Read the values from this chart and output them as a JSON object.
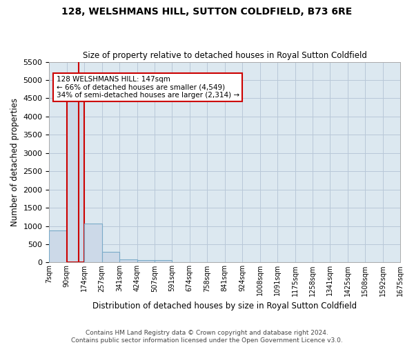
{
  "title": "128, WELSHMANS HILL, SUTTON COLDFIELD, B73 6RE",
  "subtitle": "Size of property relative to detached houses in Royal Sutton Coldfield",
  "xlabel": "Distribution of detached houses by size in Royal Sutton Coldfield",
  "ylabel": "Number of detached properties",
  "footer_line1": "Contains HM Land Registry data © Crown copyright and database right 2024.",
  "footer_line2": "Contains public sector information licensed under the Open Government Licence v3.0.",
  "annotation_line1": "128 WELSHMANS HILL: 147sqm",
  "annotation_line2": "← 66% of detached houses are smaller (4,549)",
  "annotation_line3": "34% of semi-detached houses are larger (2,314) →",
  "property_size": 147,
  "bar_color": "#ccd9e8",
  "bar_edge_color": "#7aaac8",
  "highlight_bar_edge_color": "#cc0000",
  "vline_color": "#cc0000",
  "annotation_box_edge_color": "#cc0000",
  "grid_color": "#b8c8d8",
  "background_color": "#dce8f0",
  "ylim": [
    0,
    5500
  ],
  "yticks": [
    0,
    500,
    1000,
    1500,
    2000,
    2500,
    3000,
    3500,
    4000,
    4500,
    5000,
    5500
  ],
  "bin_edges": [
    7,
    90,
    174,
    257,
    341,
    424,
    507,
    591,
    674,
    758,
    841,
    924,
    1008,
    1091,
    1175,
    1258,
    1341,
    1425,
    1508,
    1592,
    1675
  ],
  "bin_labels": [
    "7sqm",
    "90sqm",
    "174sqm",
    "257sqm",
    "341sqm",
    "424sqm",
    "507sqm",
    "591sqm",
    "674sqm",
    "758sqm",
    "841sqm",
    "924sqm",
    "1008sqm",
    "1091sqm",
    "1175sqm",
    "1258sqm",
    "1341sqm",
    "1425sqm",
    "1508sqm",
    "1592sqm",
    "1675sqm"
  ],
  "bar_heights": [
    880,
    4560,
    1060,
    290,
    80,
    70,
    55,
    0,
    0,
    0,
    0,
    0,
    0,
    0,
    0,
    0,
    0,
    0,
    0,
    0
  ]
}
